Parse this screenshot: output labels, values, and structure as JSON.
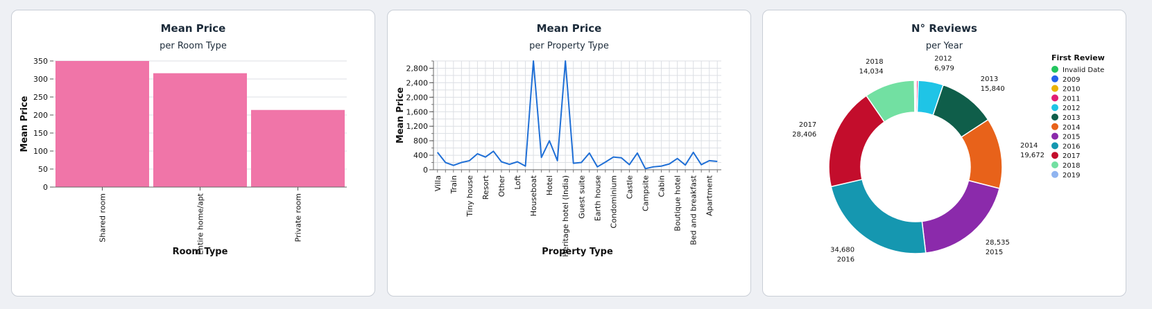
{
  "chart_data": [
    {
      "type": "bar",
      "title": "Mean Price",
      "subtitle": "per Room Type",
      "xlabel": "Room Type",
      "ylabel": "Mean Price",
      "categories": [
        "Shared room",
        "Entire home/apt",
        "Private room"
      ],
      "values": [
        352,
        316,
        214
      ],
      "ylim": [
        0,
        350
      ],
      "yticks": [
        0,
        50,
        100,
        150,
        200,
        250,
        300,
        350
      ],
      "color": "#f075a8"
    },
    {
      "type": "line",
      "title": "Mean Price",
      "subtitle": "per Property Type",
      "xlabel": "Property Type",
      "ylabel": "Mean Price",
      "categories": [
        "Villa",
        "",
        "Train",
        "",
        "Tiny house",
        "",
        "Resort",
        "",
        "Other",
        "",
        "Loft",
        "",
        "Houseboat",
        "",
        "Hotel",
        "",
        "Heritage hotel (India)",
        "",
        "Guest suite",
        "",
        "Earth house",
        "",
        "Condominium",
        "",
        "Castle",
        "",
        "Campsite",
        "",
        "Cabin",
        "",
        "Boutique hotel",
        "",
        "Bed and breakfast",
        "",
        "Apartment",
        ""
      ],
      "values": [
        480,
        200,
        120,
        200,
        250,
        440,
        350,
        510,
        220,
        150,
        220,
        100,
        3100,
        340,
        800,
        250,
        3100,
        180,
        200,
        460,
        80,
        210,
        350,
        330,
        140,
        460,
        30,
        80,
        100,
        160,
        310,
        130,
        480,
        140,
        250,
        230
      ],
      "ylim": [
        0,
        3000
      ],
      "yticks": [
        0,
        400,
        800,
        1200,
        1600,
        2000,
        2400,
        2800
      ],
      "ytick_labels": [
        "0",
        "400",
        "800",
        "1,200",
        "1,600",
        "2,000",
        "2,400",
        "2,800"
      ],
      "color": "#1f6fd6"
    },
    {
      "type": "pie",
      "title": "N° Reviews",
      "subtitle": "per Year",
      "legend_title": "First Review",
      "slices": [
        {
          "label": "Invalid Date",
          "value": 80,
          "color": "#22c55e",
          "value_label": ""
        },
        {
          "label": "2009",
          "value": 50,
          "color": "#2563eb",
          "value_label": ""
        },
        {
          "label": "2010",
          "value": 150,
          "color": "#eab308",
          "value_label": ""
        },
        {
          "label": "2011",
          "value": 480,
          "color": "#e11d74",
          "value_label": ""
        },
        {
          "label": "2012",
          "value": 6979,
          "color": "#1fc4e6",
          "value_label": "6,979"
        },
        {
          "label": "2013",
          "value": 15840,
          "color": "#0f5e4a",
          "value_label": "15,840"
        },
        {
          "label": "2014",
          "value": 19672,
          "color": "#e8621a",
          "value_label": "19,672"
        },
        {
          "label": "2015",
          "value": 28535,
          "color": "#8b2aab",
          "value_label": "28,535"
        },
        {
          "label": "2016",
          "value": 34680,
          "color": "#1597b0",
          "value_label": "34,680"
        },
        {
          "label": "2017",
          "value": 28406,
          "color": "#c30d2c",
          "value_label": "28,406"
        },
        {
          "label": "2018",
          "value": 14034,
          "color": "#72e0a2",
          "value_label": "14,034"
        },
        {
          "label": "2019",
          "value": 300,
          "color": "#8fb4f0",
          "value_label": ""
        }
      ]
    }
  ]
}
